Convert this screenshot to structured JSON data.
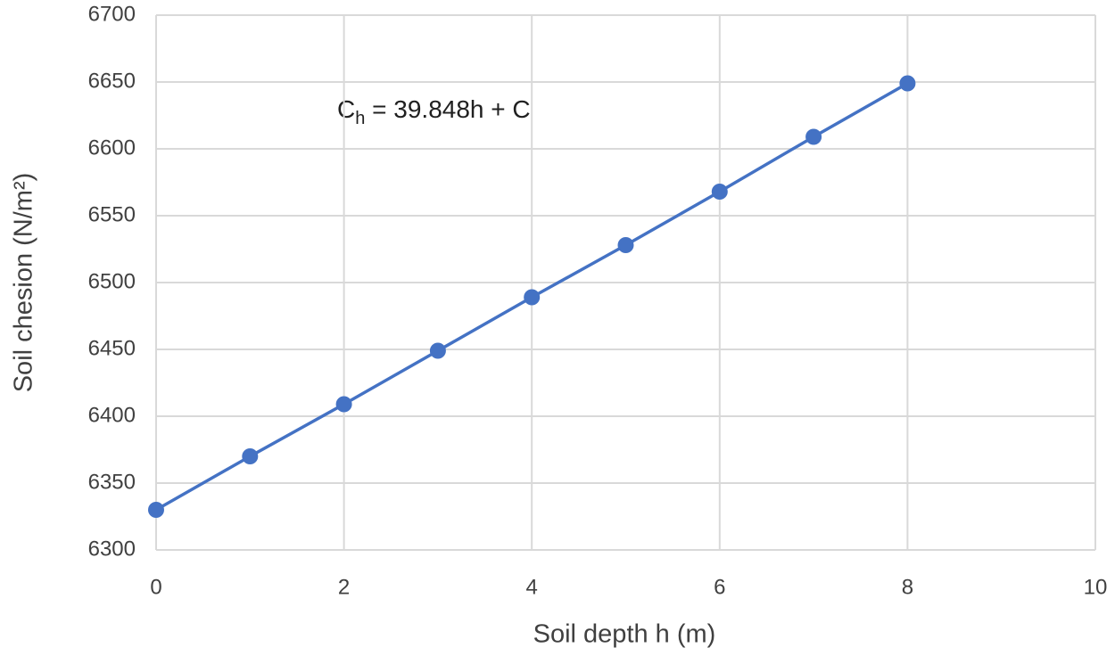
{
  "chart_data": {
    "type": "scatter",
    "x": [
      0,
      1,
      2,
      3,
      4,
      5,
      6,
      7,
      8
    ],
    "values": [
      6330,
      6370,
      6409,
      6449,
      6489,
      6528,
      6568,
      6609,
      6649
    ],
    "color": "#4472c4",
    "line": true,
    "xlabel": "Soil depth h (m)",
    "ylabel": "Soil chesion (N/m²)",
    "annotation": {
      "base": "C",
      "subscript": "h",
      "text": " = 39.848h + C"
    },
    "xlim": [
      0,
      10
    ],
    "xticks": [
      0,
      2,
      4,
      6,
      8,
      10
    ],
    "ylim": [
      6300,
      6700
    ],
    "yticks": [
      6300,
      6350,
      6400,
      6450,
      6500,
      6550,
      6600,
      6650,
      6700
    ],
    "grid": true
  }
}
